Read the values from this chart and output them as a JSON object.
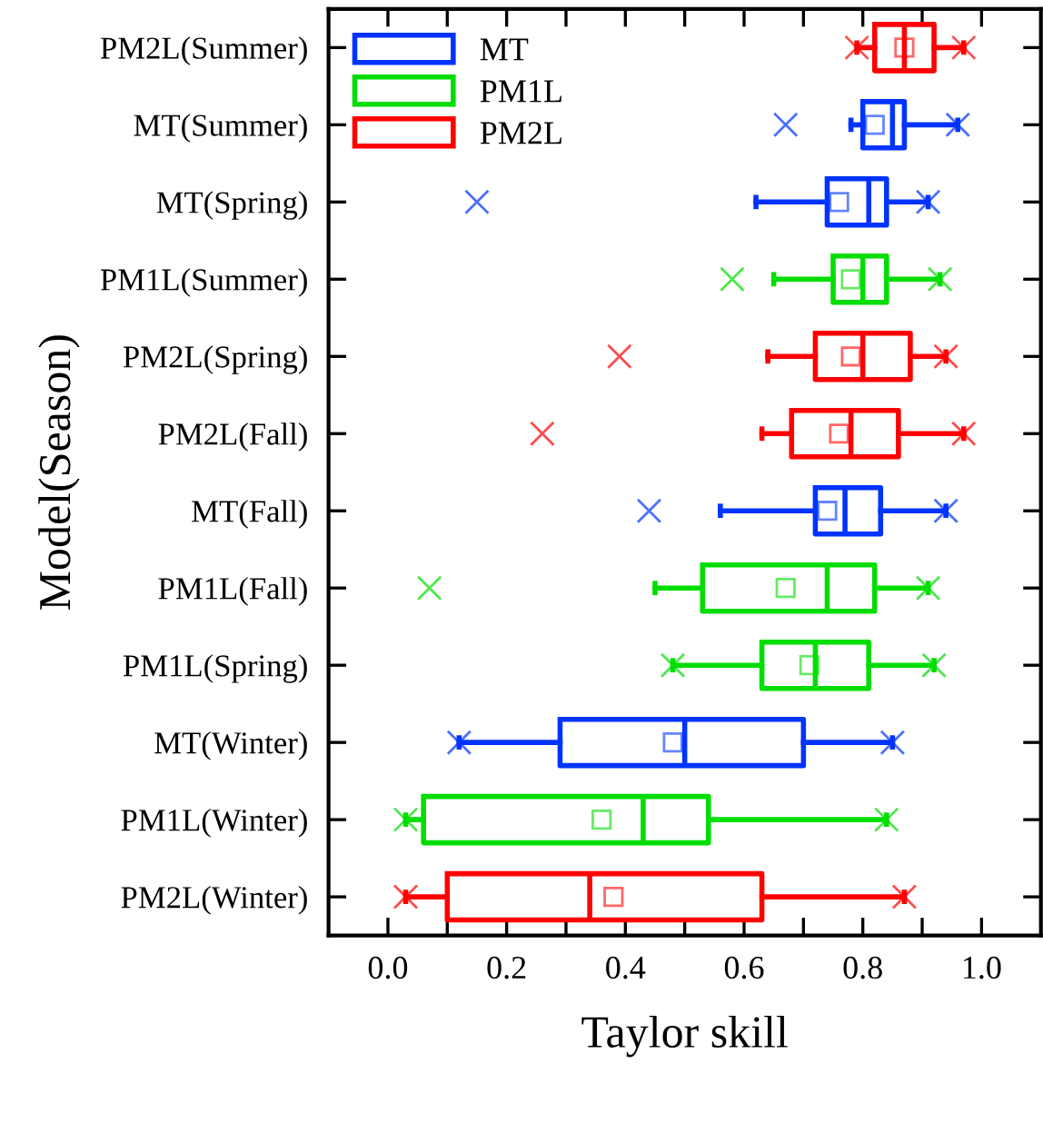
{
  "chart_data": {
    "type": "box",
    "xlabel": "Taylor skill",
    "ylabel": "Model(Season)",
    "orientation": "horizontal",
    "categories": [
      "PM2L(Summer)",
      "MT(Summer)",
      "MT(Spring)",
      "PM1L(Summer)",
      "PM2L(Spring)",
      "PM2L(Fall)",
      "MT(Fall)",
      "PM1L(Fall)",
      "PM1L(Spring)",
      "MT(Winter)",
      "PM1L(Winter)",
      "PM2L(Winter)"
    ],
    "xlim": [
      -0.1,
      1.1
    ],
    "xticks": [
      {
        "value": 0.0,
        "label": "0.0"
      },
      {
        "value": 0.1,
        "label": null
      },
      {
        "value": 0.2,
        "label": "0.2"
      },
      {
        "value": 0.3,
        "label": null
      },
      {
        "value": 0.4,
        "label": "0.4"
      },
      {
        "value": 0.5,
        "label": null
      },
      {
        "value": 0.6,
        "label": "0.6"
      },
      {
        "value": 0.7,
        "label": null
      },
      {
        "value": 0.8,
        "label": "0.8"
      },
      {
        "value": 0.9,
        "label": null
      },
      {
        "value": 1.0,
        "label": "1.0"
      }
    ],
    "legend": "top left",
    "grid": false,
    "series": [
      {
        "name": "MT",
        "color": "#0033ff",
        "boxes": [
          null,
          {
            "low": 0.78,
            "q1": 0.8,
            "median": 0.85,
            "q3": 0.87,
            "high": 0.96,
            "mean": 0.82,
            "outliers": [
              0.67,
              0.96
            ]
          },
          {
            "low": 0.62,
            "q1": 0.74,
            "median": 0.81,
            "q3": 0.84,
            "high": 0.91,
            "mean": 0.76,
            "outliers": [
              0.15,
              0.91
            ]
          },
          null,
          null,
          null,
          {
            "low": 0.56,
            "q1": 0.72,
            "median": 0.77,
            "q3": 0.83,
            "high": 0.94,
            "mean": 0.74,
            "outliers": [
              0.44,
              0.94
            ]
          },
          null,
          null,
          {
            "low": 0.12,
            "q1": 0.29,
            "median": 0.5,
            "q3": 0.7,
            "high": 0.85,
            "mean": 0.48,
            "outliers": [
              0.12,
              0.85
            ]
          },
          null,
          null
        ]
      },
      {
        "name": "PM1L",
        "color": "#00dd00",
        "boxes": [
          null,
          null,
          null,
          {
            "low": 0.65,
            "q1": 0.75,
            "median": 0.8,
            "q3": 0.84,
            "high": 0.93,
            "mean": 0.78,
            "outliers": [
              0.58,
              0.93
            ]
          },
          null,
          null,
          null,
          {
            "low": 0.45,
            "q1": 0.53,
            "median": 0.74,
            "q3": 0.82,
            "high": 0.91,
            "mean": 0.67,
            "outliers": [
              0.07,
              0.91
            ]
          },
          {
            "low": 0.48,
            "q1": 0.63,
            "median": 0.72,
            "q3": 0.81,
            "high": 0.92,
            "mean": 0.71,
            "outliers": [
              0.48,
              0.92
            ]
          },
          null,
          {
            "low": 0.03,
            "q1": 0.06,
            "median": 0.43,
            "q3": 0.54,
            "high": 0.84,
            "mean": 0.36,
            "outliers": [
              0.03,
              0.84
            ]
          },
          null
        ]
      },
      {
        "name": "PM2L",
        "color": "#ff0000",
        "boxes": [
          {
            "low": 0.79,
            "q1": 0.82,
            "median": 0.87,
            "q3": 0.92,
            "high": 0.97,
            "mean": 0.87,
            "outliers": [
              0.79,
              0.97
            ]
          },
          null,
          null,
          null,
          {
            "low": 0.64,
            "q1": 0.72,
            "median": 0.8,
            "q3": 0.88,
            "high": 0.94,
            "mean": 0.78,
            "outliers": [
              0.39,
              0.94
            ]
          },
          {
            "low": 0.63,
            "q1": 0.68,
            "median": 0.78,
            "q3": 0.86,
            "high": 0.97,
            "mean": 0.76,
            "outliers": [
              0.26,
              0.97
            ]
          },
          null,
          null,
          null,
          null,
          null,
          {
            "low": 0.03,
            "q1": 0.1,
            "median": 0.34,
            "q3": 0.63,
            "high": 0.87,
            "mean": 0.38,
            "outliers": [
              0.03,
              0.87
            ]
          }
        ]
      }
    ]
  }
}
